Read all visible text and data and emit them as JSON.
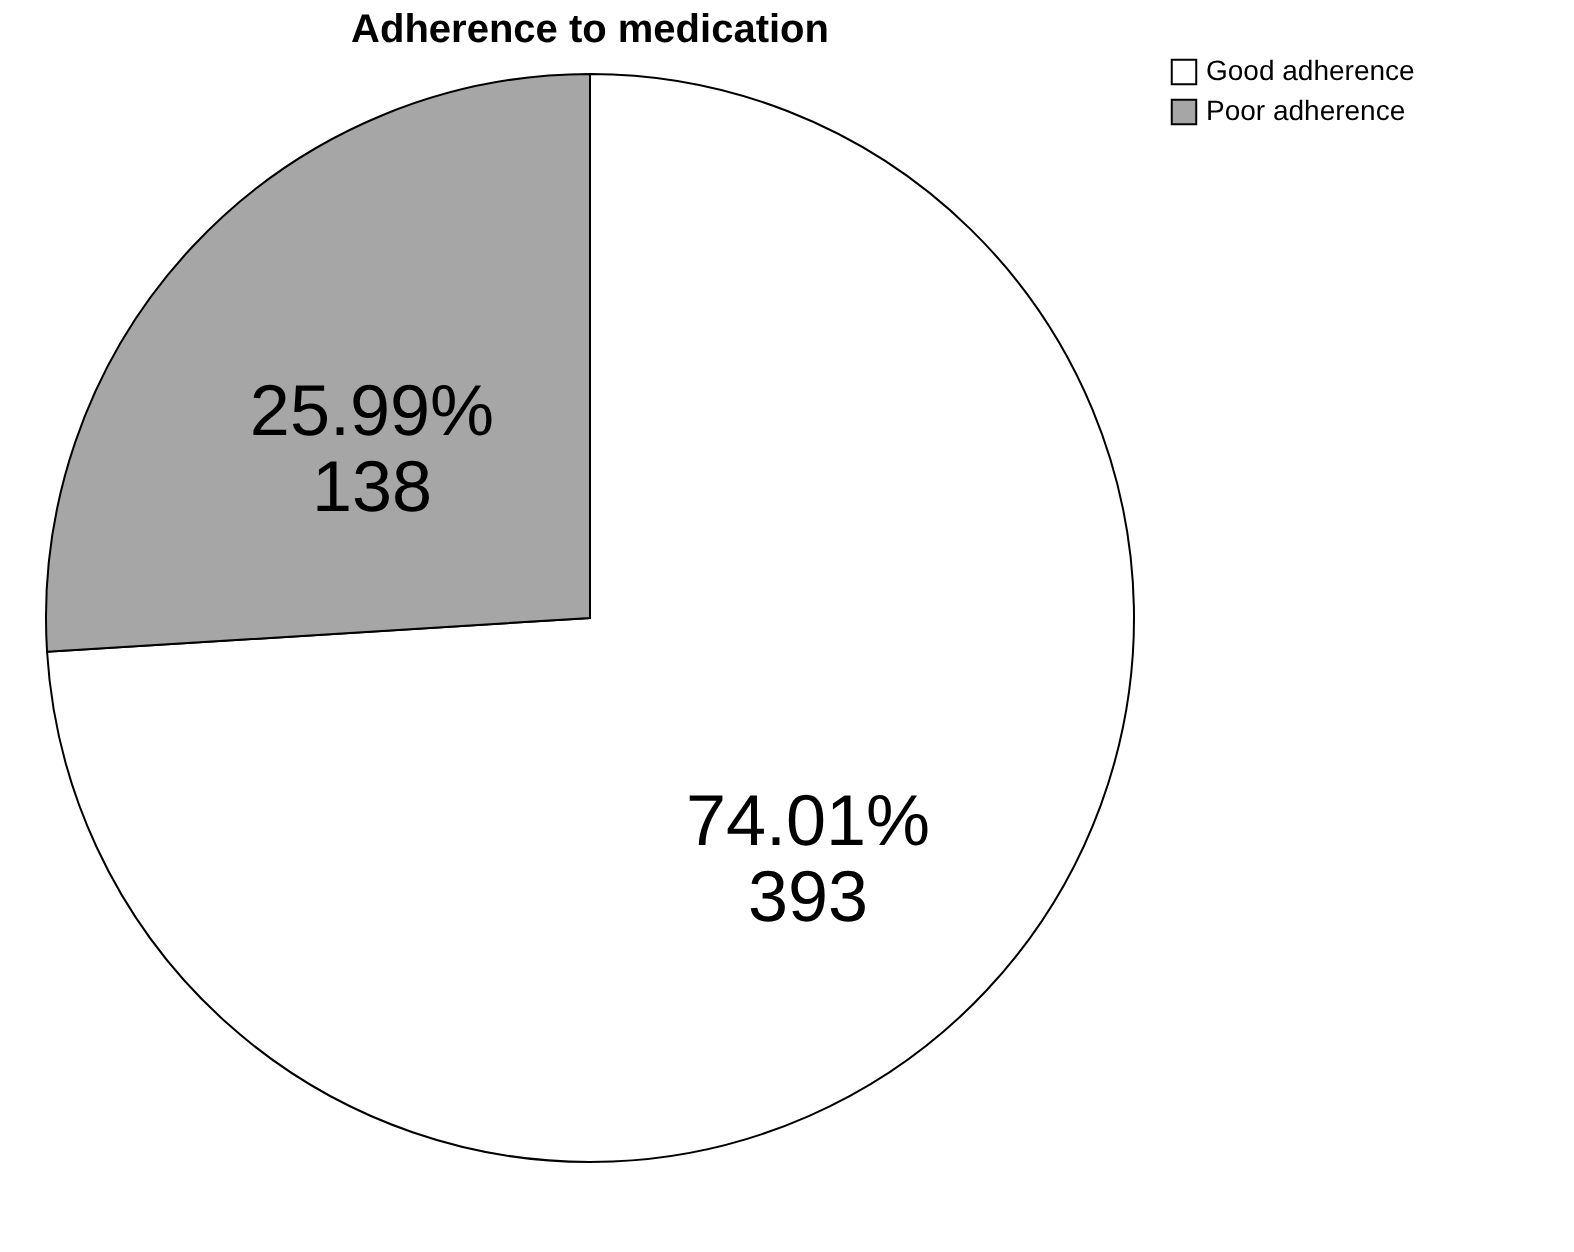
{
  "chart_data": {
    "type": "pie",
    "title": "Adherence to medication",
    "categories": [
      "Good adherence",
      "Poor adherence"
    ],
    "values": [
      393,
      138
    ],
    "colors": [
      "#ffffff",
      "#a6a6a6"
    ],
    "value_labels": [
      "74.01%\n393",
      "25.99%\n138"
    ],
    "legend": "top right"
  }
}
